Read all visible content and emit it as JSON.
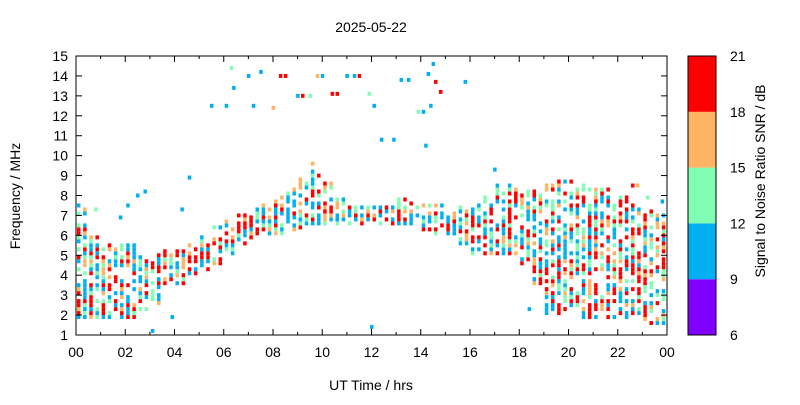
{
  "chart_data": {
    "type": "scatter",
    "title": "2025-05-22",
    "xlabel": "UT Time / hrs",
    "ylabel": "Frequency / MHz",
    "xlim": [
      0,
      24
    ],
    "ylim": [
      1,
      15
    ],
    "x_tick_labels": [
      "00",
      "02",
      "04",
      "06",
      "08",
      "10",
      "12",
      "14",
      "16",
      "18",
      "20",
      "22",
      "00"
    ],
    "y_tick_labels": [
      "1",
      "2",
      "3",
      "4",
      "5",
      "6",
      "7",
      "8",
      "9",
      "10",
      "11",
      "12",
      "13",
      "14",
      "15"
    ],
    "grid": false,
    "colorbar": {
      "label": "Signal to Noise Ratio SNR / dB",
      "range": [
        6,
        21
      ],
      "tick_labels": [
        "6",
        "9",
        "12",
        "15",
        "18",
        "21"
      ],
      "bands": [
        {
          "from": 6,
          "to": 9,
          "color": "#7f00ff"
        },
        {
          "from": 9,
          "to": 12,
          "color": "#00b0f0"
        },
        {
          "from": 12,
          "to": 15,
          "color": "#80ffb4"
        },
        {
          "from": 15,
          "to": 18,
          "color": "#ffb464"
        },
        {
          "from": 18,
          "to": 21,
          "color": "#ff0000"
        }
      ]
    },
    "series_ranges_columns": [
      "ut_hour",
      "f_min_mhz",
      "f_max_mhz"
    ],
    "series_ranges": [
      [
        0.0,
        1.8,
        7.5
      ],
      [
        0.5,
        1.8,
        6.0
      ],
      [
        1.0,
        1.8,
        5.5
      ],
      [
        1.5,
        1.8,
        5.5
      ],
      [
        2.0,
        1.8,
        5.5
      ],
      [
        2.5,
        2.0,
        5.0
      ],
      [
        3.0,
        2.5,
        5.0
      ],
      [
        3.5,
        3.5,
        5.2
      ],
      [
        4.0,
        3.5,
        5.2
      ],
      [
        4.5,
        4.0,
        5.5
      ],
      [
        5.0,
        4.2,
        6.0
      ],
      [
        5.5,
        4.5,
        6.5
      ],
      [
        6.0,
        5.0,
        6.8
      ],
      [
        6.5,
        5.5,
        7.0
      ],
      [
        7.0,
        5.8,
        7.3
      ],
      [
        7.5,
        6.0,
        7.5
      ],
      [
        8.0,
        6.0,
        8.0
      ],
      [
        8.5,
        6.2,
        8.5
      ],
      [
        9.0,
        6.3,
        8.8
      ],
      [
        9.5,
        6.5,
        9.5
      ],
      [
        10.0,
        6.5,
        8.5
      ],
      [
        10.5,
        6.5,
        7.8
      ],
      [
        11.0,
        6.5,
        7.5
      ],
      [
        11.5,
        6.5,
        7.5
      ],
      [
        12.0,
        6.5,
        7.5
      ],
      [
        12.5,
        6.5,
        7.5
      ],
      [
        13.0,
        6.5,
        7.8
      ],
      [
        13.5,
        6.5,
        7.7
      ],
      [
        14.0,
        6.2,
        7.5
      ],
      [
        14.5,
        6.0,
        7.5
      ],
      [
        15.0,
        6.0,
        7.5
      ],
      [
        15.5,
        5.5,
        7.5
      ],
      [
        16.0,
        5.0,
        7.6
      ],
      [
        16.5,
        5.0,
        8.0
      ],
      [
        17.0,
        5.0,
        8.5
      ],
      [
        17.5,
        5.0,
        8.5
      ],
      [
        18.0,
        4.5,
        8.5
      ],
      [
        18.5,
        3.5,
        8.5
      ],
      [
        19.0,
        2.0,
        8.8
      ],
      [
        19.5,
        2.0,
        8.8
      ],
      [
        20.0,
        2.0,
        8.8
      ],
      [
        20.5,
        1.8,
        8.5
      ],
      [
        21.0,
        1.8,
        8.3
      ],
      [
        21.5,
        1.8,
        8.3
      ],
      [
        22.0,
        1.8,
        8.0
      ],
      [
        22.5,
        1.8,
        7.5
      ],
      [
        23.0,
        1.5,
        7.3
      ],
      [
        23.5,
        1.5,
        7.0
      ]
    ],
    "points_columns": [
      "ut_hour",
      "frequency_mhz",
      "snr_db"
    ],
    "points": [
      [
        5.5,
        12.5,
        10
      ],
      [
        6.1,
        12.5,
        10
      ],
      [
        6.3,
        14.4,
        13
      ],
      [
        6.4,
        13.4,
        10
      ],
      [
        7.0,
        14.0,
        10
      ],
      [
        7.5,
        14.2,
        10
      ],
      [
        7.2,
        12.5,
        10
      ],
      [
        8.3,
        14.0,
        19
      ],
      [
        8.5,
        14.0,
        19
      ],
      [
        8.0,
        12.4,
        16
      ],
      [
        9.0,
        13.0,
        10
      ],
      [
        9.2,
        13.0,
        19
      ],
      [
        9.5,
        13.0,
        13
      ],
      [
        9.8,
        14.0,
        16
      ],
      [
        10.0,
        14.0,
        10
      ],
      [
        10.4,
        13.1,
        19
      ],
      [
        10.6,
        13.1,
        19
      ],
      [
        11.0,
        14.0,
        10
      ],
      [
        11.3,
        14.0,
        10
      ],
      [
        11.5,
        14.0,
        19
      ],
      [
        11.9,
        13.1,
        13
      ],
      [
        12.1,
        12.5,
        10
      ],
      [
        12.4,
        10.8,
        10
      ],
      [
        12.9,
        10.8,
        10
      ],
      [
        13.2,
        13.8,
        10
      ],
      [
        13.5,
        13.8,
        10
      ],
      [
        13.9,
        12.2,
        13
      ],
      [
        14.1,
        12.2,
        10
      ],
      [
        14.3,
        14.1,
        10
      ],
      [
        14.5,
        14.6,
        10
      ],
      [
        14.4,
        12.5,
        10
      ],
      [
        14.2,
        10.5,
        10
      ],
      [
        14.6,
        13.7,
        19
      ],
      [
        14.8,
        13.2,
        19
      ],
      [
        15.8,
        13.7,
        10
      ],
      [
        0.8,
        7.3,
        13
      ],
      [
        1.8,
        6.9,
        10
      ],
      [
        2.1,
        7.5,
        10
      ],
      [
        2.5,
        8.0,
        10
      ],
      [
        2.8,
        8.2,
        10
      ],
      [
        4.3,
        7.3,
        10
      ],
      [
        4.6,
        8.9,
        10
      ],
      [
        12.0,
        1.4,
        10
      ],
      [
        3.1,
        1.2,
        10
      ],
      [
        3.9,
        1.9,
        10
      ],
      [
        22.6,
        8.5,
        19
      ],
      [
        22.8,
        8.5,
        16
      ],
      [
        23.2,
        7.9,
        13
      ],
      [
        23.8,
        7.7,
        10
      ],
      [
        18.4,
        2.3,
        10
      ],
      [
        17.0,
        9.3,
        10
      ]
    ]
  }
}
